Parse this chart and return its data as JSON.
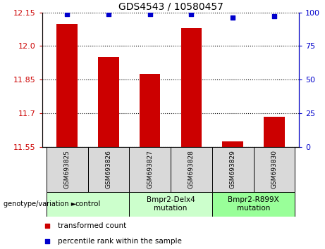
{
  "title": "GDS4543 / 10580457",
  "samples": [
    "GSM693825",
    "GSM693826",
    "GSM693827",
    "GSM693828",
    "GSM693829",
    "GSM693830"
  ],
  "bar_values": [
    12.1,
    11.95,
    11.875,
    12.08,
    11.575,
    11.685
  ],
  "percentile_values": [
    99,
    99,
    99,
    99,
    96,
    97
  ],
  "ylim_left": [
    11.55,
    12.15
  ],
  "ylim_right": [
    0,
    100
  ],
  "yticks_left": [
    11.55,
    11.7,
    11.85,
    12.0,
    12.15
  ],
  "yticks_right": [
    0,
    25,
    50,
    75,
    100
  ],
  "bar_color": "#cc0000",
  "dot_color": "#0000cc",
  "bar_bottom": 11.55,
  "groups": [
    {
      "label": "control",
      "start": 0,
      "end": 2,
      "color": "#ccffcc"
    },
    {
      "label": "Bmpr2-Delx4\nmutation",
      "start": 2,
      "end": 4,
      "color": "#ccffcc"
    },
    {
      "label": "Bmpr2-R899X\nmutation",
      "start": 4,
      "end": 6,
      "color": "#99ff99"
    }
  ],
  "xlabel_main": "genotype/variation ►",
  "legend_items": [
    {
      "color": "#cc0000",
      "label": "transformed count"
    },
    {
      "color": "#0000cc",
      "label": "percentile rank within the sample"
    }
  ],
  "tick_color_left": "#cc0000",
  "tick_color_right": "#0000cc",
  "cell_color": "#d9d9d9",
  "title_fontsize": 10,
  "tick_fontsize": 8,
  "legend_fontsize": 7.5,
  "sample_fontsize": 6.5,
  "group_fontsize": 7.5
}
